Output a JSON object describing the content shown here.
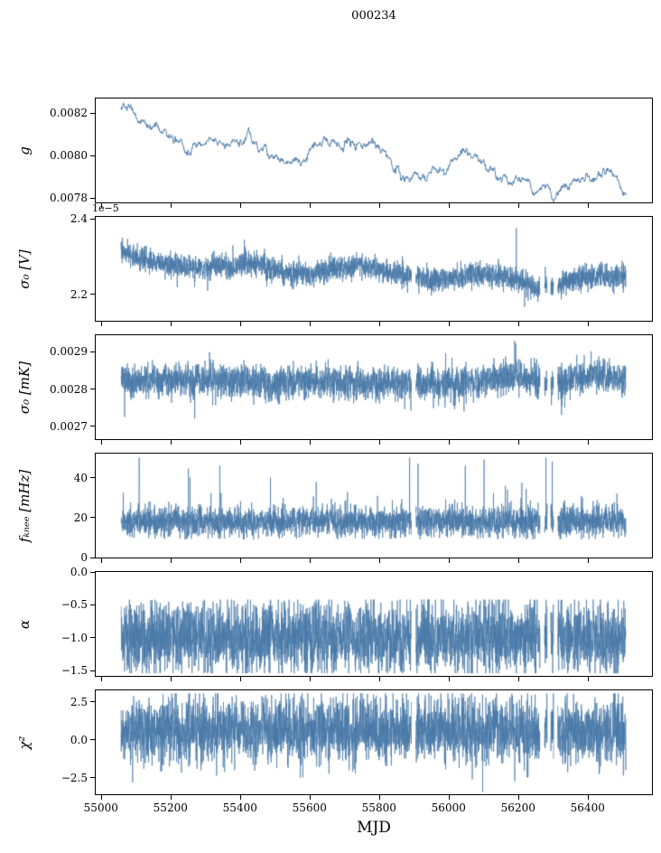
{
  "title": "000234",
  "xlabel": "MJD",
  "chart_data": {
    "type": "line",
    "line_color": "#4878a8",
    "xlim": [
      54985,
      56585
    ],
    "x_data_range": [
      55058,
      56510
    ],
    "xticks": [
      55000,
      55200,
      55400,
      55600,
      55800,
      56000,
      56200,
      56400
    ],
    "xtick_labels": [
      "55000",
      "55200",
      "55400",
      "55600",
      "55800",
      "56000",
      "56200",
      "56400"
    ],
    "gaps": [
      [
        55893,
        55906
      ],
      [
        56263,
        56276
      ],
      [
        56284,
        56294
      ],
      [
        56302,
        56314
      ]
    ],
    "panels": [
      {
        "id": "g",
        "ylabel": "g",
        "ylim": [
          0.00778,
          0.00827
        ],
        "yticks": [
          0.0078,
          0.008,
          0.0082
        ],
        "ytick_labels": [
          "0.0078",
          "0.0080",
          "0.0082"
        ],
        "style": "walk",
        "noise": 1.2e-05,
        "trend": [
          [
            55058,
            0.00822
          ],
          [
            55065,
            0.00825
          ],
          [
            55075,
            0.0082
          ],
          [
            55085,
            0.00824
          ],
          [
            55100,
            0.00818
          ],
          [
            55125,
            0.00814
          ],
          [
            55150,
            0.00813
          ],
          [
            55185,
            0.00813
          ],
          [
            55200,
            0.00809
          ],
          [
            55215,
            0.00806
          ],
          [
            55230,
            0.00807
          ],
          [
            55250,
            0.00802
          ],
          [
            55265,
            0.00807
          ],
          [
            55285,
            0.00806
          ],
          [
            55310,
            0.00808
          ],
          [
            55340,
            0.00807
          ],
          [
            55365,
            0.00806
          ],
          [
            55395,
            0.00806
          ],
          [
            55415,
            0.00808
          ],
          [
            55425,
            0.00814
          ],
          [
            55435,
            0.00808
          ],
          [
            55455,
            0.00805
          ],
          [
            55475,
            0.00803
          ],
          [
            55495,
            0.008
          ],
          [
            55520,
            0.00799
          ],
          [
            55545,
            0.00795
          ],
          [
            55565,
            0.00797
          ],
          [
            55580,
            0.00794
          ],
          [
            55600,
            0.00801
          ],
          [
            55615,
            0.00805
          ],
          [
            55630,
            0.00806
          ],
          [
            55650,
            0.00806
          ],
          [
            55670,
            0.00807
          ],
          [
            55690,
            0.00804
          ],
          [
            55710,
            0.00806
          ],
          [
            55730,
            0.00807
          ],
          [
            55755,
            0.00807
          ],
          [
            55775,
            0.00806
          ],
          [
            55795,
            0.00805
          ],
          [
            55815,
            0.00801
          ],
          [
            55830,
            0.00799
          ],
          [
            55840,
            0.00792
          ],
          [
            55855,
            0.00794
          ],
          [
            55870,
            0.00792
          ],
          [
            55885,
            0.0079
          ],
          [
            55900,
            0.00793
          ],
          [
            55920,
            0.00791
          ],
          [
            55940,
            0.00792
          ],
          [
            55960,
            0.00794
          ],
          [
            55980,
            0.00792
          ],
          [
            56000,
            0.00795
          ],
          [
            56020,
            0.00798
          ],
          [
            56040,
            0.008
          ],
          [
            56060,
            0.00799
          ],
          [
            56080,
            0.00798
          ],
          [
            56100,
            0.00797
          ],
          [
            56120,
            0.00793
          ],
          [
            56140,
            0.0079
          ],
          [
            56160,
            0.00791
          ],
          [
            56180,
            0.00788
          ],
          [
            56200,
            0.0079
          ],
          [
            56220,
            0.00787
          ],
          [
            56240,
            0.00785
          ],
          [
            56260,
            0.00786
          ],
          [
            56280,
            0.00784
          ],
          [
            56300,
            0.0078
          ],
          [
            56320,
            0.00783
          ],
          [
            56340,
            0.00786
          ],
          [
            56360,
            0.00785
          ],
          [
            56380,
            0.00787
          ],
          [
            56400,
            0.0079
          ],
          [
            56420,
            0.00791
          ],
          [
            56440,
            0.00792
          ],
          [
            56460,
            0.00794
          ],
          [
            56475,
            0.00792
          ],
          [
            56490,
            0.00791
          ],
          [
            56510,
            0.00782
          ]
        ]
      },
      {
        "id": "sigma0_V",
        "ylabel": "σ₀ [V]",
        "offset_text": "1e−5",
        "ylim": [
          2.13,
          2.405
        ],
        "yticks": [
          2.2,
          2.4
        ],
        "ytick_labels": [
          "2.2",
          "2.4"
        ],
        "style": "noisy",
        "noise": 0.016,
        "spike_prob": 0.0008,
        "spike_amp": 0.06,
        "spike_dir": 1,
        "spikes": [
          [
            55062,
            2.35
          ],
          [
            56195,
            2.375
          ]
        ],
        "trend": [
          [
            55058,
            2.315
          ],
          [
            55090,
            2.3
          ],
          [
            55130,
            2.295
          ],
          [
            55170,
            2.285
          ],
          [
            55210,
            2.275
          ],
          [
            55250,
            2.27
          ],
          [
            55290,
            2.27
          ],
          [
            55330,
            2.272
          ],
          [
            55370,
            2.272
          ],
          [
            55410,
            2.278
          ],
          [
            55440,
            2.282
          ],
          [
            55470,
            2.272
          ],
          [
            55510,
            2.262
          ],
          [
            55550,
            2.252
          ],
          [
            55590,
            2.252
          ],
          [
            55630,
            2.258
          ],
          [
            55670,
            2.268
          ],
          [
            55710,
            2.275
          ],
          [
            55745,
            2.278
          ],
          [
            55780,
            2.272
          ],
          [
            55820,
            2.262
          ],
          [
            55860,
            2.252
          ],
          [
            55900,
            2.245
          ],
          [
            55940,
            2.238
          ],
          [
            55980,
            2.238
          ],
          [
            56020,
            2.245
          ],
          [
            56060,
            2.25
          ],
          [
            56100,
            2.252
          ],
          [
            56140,
            2.25
          ],
          [
            56180,
            2.245
          ],
          [
            56220,
            2.232
          ],
          [
            56250,
            2.215
          ],
          [
            56280,
            2.22
          ],
          [
            56310,
            2.225
          ],
          [
            56340,
            2.235
          ],
          [
            56380,
            2.242
          ],
          [
            56420,
            2.245
          ],
          [
            56460,
            2.248
          ],
          [
            56510,
            2.25
          ]
        ]
      },
      {
        "id": "sigma0_mK",
        "ylabel": "σ₀ [mK]",
        "ylim": [
          0.002665,
          0.002945
        ],
        "yticks": [
          0.0027,
          0.0028,
          0.0029
        ],
        "ytick_labels": [
          "0.0027",
          "0.0028",
          "0.0029"
        ],
        "style": "noisy",
        "noise": 2.2e-05,
        "spike_prob": 0.0008,
        "spike_amp": 6e-05,
        "spike_dir": 0,
        "spikes": [
          [
            55270,
            0.00272
          ],
          [
            56190,
            0.00293
          ],
          [
            56325,
            0.00273
          ]
        ],
        "trend": [
          [
            55058,
            0.00282
          ],
          [
            55200,
            0.002825
          ],
          [
            55350,
            0.002825
          ],
          [
            55500,
            0.002815
          ],
          [
            55650,
            0.00282
          ],
          [
            55800,
            0.002815
          ],
          [
            55950,
            0.002815
          ],
          [
            56100,
            0.00282
          ],
          [
            56180,
            0.002835
          ],
          [
            56240,
            0.002825
          ],
          [
            56300,
            0.002815
          ],
          [
            56360,
            0.002825
          ],
          [
            56420,
            0.002835
          ],
          [
            56470,
            0.002828
          ],
          [
            56510,
            0.002825
          ]
        ]
      },
      {
        "id": "f_knee",
        "ylabel": "fₖₙₑₑ [mHz]",
        "ylim": [
          0,
          52
        ],
        "yticks": [
          0,
          20,
          40
        ],
        "ytick_labels": [
          "0",
          "20",
          "40"
        ],
        "style": "noisy",
        "noise": 3.8,
        "floor": 9,
        "spike_prob": 0.005,
        "spike_amp": 18,
        "spike_dir": 1,
        "spikes": [
          [
            55110,
            50
          ],
          [
            55342,
            46
          ],
          [
            55888,
            50
          ],
          [
            55912,
            47
          ],
          [
            56048,
            46
          ],
          [
            56102,
            49
          ],
          [
            56280,
            50
          ],
          [
            56298,
            48
          ]
        ],
        "trend": [
          [
            55058,
            18
          ],
          [
            56510,
            18
          ]
        ]
      },
      {
        "id": "alpha",
        "ylabel": "α",
        "ylim": [
          -1.58,
          0.0
        ],
        "yticks": [
          -1.5,
          -1.0,
          -0.5,
          0.0
        ],
        "ytick_labels": [
          "−1.5",
          "−1.0",
          "−0.5",
          "0.0"
        ],
        "style": "noisy",
        "noise": 0.27,
        "clip": [
          -1.54,
          -0.42
        ],
        "spike_prob": 0.001,
        "spike_amp": 0.35,
        "spike_dir": 1,
        "spikes": [],
        "trend": [
          [
            55058,
            -1.0
          ],
          [
            56510,
            -1.0
          ]
        ]
      },
      {
        "id": "chi2",
        "ylabel": "χ²",
        "ylim": [
          -3.6,
          3.25
        ],
        "yticks": [
          -2.5,
          0.0,
          2.5
        ],
        "ytick_labels": [
          "−2.5",
          "0.0",
          "2.5"
        ],
        "style": "noisy",
        "noise": 1.05,
        "clip": [
          -2.9,
          3.05
        ],
        "spike_prob": 0.0015,
        "spike_amp": 1.2,
        "spike_dir": 0,
        "spikes": [
          [
            56098,
            -3.45
          ]
        ],
        "trend": [
          [
            55058,
            0.6
          ],
          [
            56510,
            0.6
          ]
        ]
      }
    ]
  }
}
